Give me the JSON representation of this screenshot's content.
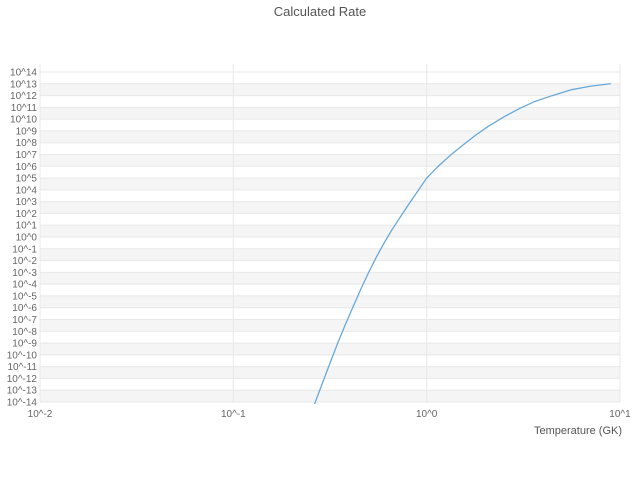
{
  "chart_data": {
    "type": "line",
    "title": "Calculated Rate",
    "xlabel": "Temperature (GK)",
    "ylabel": "",
    "x_scale": "log",
    "y_scale": "log",
    "xlim_log10": [
      -2,
      1
    ],
    "ylim_log10": [
      -14,
      14
    ],
    "grid": "on",
    "legend": "none",
    "x_tick_labels": [
      "10^-2",
      "10^-1",
      "10^0",
      "10^1"
    ],
    "x_tick_log10": [
      -2,
      -1,
      0,
      1
    ],
    "y_tick_labels": [
      "10^14",
      "10^13",
      "10^12",
      "10^11",
      "10^10",
      "10^9",
      "10^8",
      "10^7",
      "10^6",
      "10^5",
      "10^4",
      "10^3",
      "10^2",
      "10^1",
      "10^0",
      "10^-1",
      "10^-2",
      "10^-3",
      "10^-4",
      "10^-5",
      "10^-6",
      "10^-7",
      "10^-8",
      "10^-9",
      "10^-10",
      "10^-11",
      "10^-12",
      "10^-13",
      "10^-14"
    ],
    "y_tick_log10": [
      14,
      13,
      12,
      11,
      10,
      9,
      8,
      7,
      6,
      5,
      4,
      3,
      2,
      1,
      0,
      -1,
      -2,
      -3,
      -4,
      -5,
      -6,
      -7,
      -8,
      -9,
      -10,
      -11,
      -12,
      -13,
      -14
    ],
    "colors": {
      "line": "#69a8d8",
      "grid": "#e8e8e8",
      "band": "#f5f5f5",
      "tick_text": "#666666",
      "title_text": "#545454"
    },
    "series": [
      {
        "name": "calculated-rate",
        "points_log10": [
          [
            -0.6,
            -15.2
          ],
          [
            -0.585,
            -14.4
          ],
          [
            -0.56,
            -13.3
          ],
          [
            -0.53,
            -12.0
          ],
          [
            -0.5,
            -10.7
          ],
          [
            -0.46,
            -9.0
          ],
          [
            -0.42,
            -7.4
          ],
          [
            -0.38,
            -5.9
          ],
          [
            -0.34,
            -4.4
          ],
          [
            -0.3,
            -3.0
          ],
          [
            -0.26,
            -1.7
          ],
          [
            -0.22,
            -0.5
          ],
          [
            -0.18,
            0.6
          ],
          [
            -0.14,
            1.6
          ],
          [
            -0.1,
            2.6
          ],
          [
            -0.05,
            3.8
          ],
          [
            0.0,
            5.0
          ],
          [
            0.06,
            6.0
          ],
          [
            0.12,
            6.9
          ],
          [
            0.18,
            7.7
          ],
          [
            0.25,
            8.6
          ],
          [
            0.32,
            9.4
          ],
          [
            0.4,
            10.2
          ],
          [
            0.48,
            10.9
          ],
          [
            0.56,
            11.5
          ],
          [
            0.65,
            12.0
          ],
          [
            0.75,
            12.5
          ],
          [
            0.85,
            12.8
          ],
          [
            0.95,
            13.0
          ]
        ]
      }
    ]
  }
}
